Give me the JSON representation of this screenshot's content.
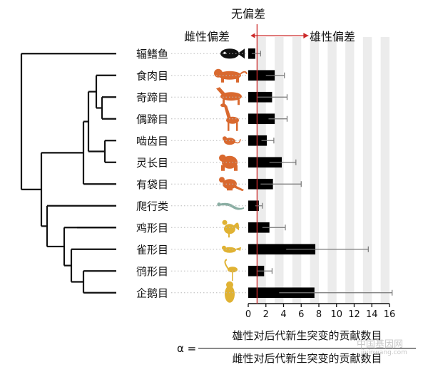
{
  "chart_data": {
    "type": "bar",
    "orientation": "horizontal",
    "title": "无偏差",
    "left_header": "雌性偏差",
    "right_header": "雄性偏差",
    "categories": [
      "辐鳍鱼",
      "食肉目",
      "奇蹄目",
      "偶蹄目",
      "啮齿目",
      "灵长目",
      "有袋目",
      "爬行类",
      "鸡形目",
      "雀形目",
      "鸻形目",
      "企鹅目"
    ],
    "values": [
      0.8,
      3.0,
      2.7,
      3.0,
      2.1,
      3.8,
      2.8,
      1.2,
      2.4,
      7.6,
      1.8,
      7.5
    ],
    "error_low": [
      0.4,
      2.0,
      1.0,
      2.3,
      1.5,
      2.4,
      1.4,
      0.8,
      1.6,
      4.3,
      1.0,
      3.5
    ],
    "error_high": [
      1.4,
      4.1,
      4.4,
      4.4,
      2.9,
      5.4,
      6.0,
      1.6,
      4.2,
      13.6,
      2.7,
      16.3
    ],
    "group_colors": [
      "#111111",
      "#d9692f",
      "#d9692f",
      "#d9692f",
      "#d9692f",
      "#d9692f",
      "#d9692f",
      "#8aaea3",
      "#e0b233",
      "#e0b233",
      "#e0b233",
      "#e0b233"
    ],
    "icons": [
      "fish-icon",
      "tiger-icon",
      "horse-icon",
      "giraffe-icon",
      "mouse-icon",
      "gorilla-icon",
      "kangaroo-icon",
      "lizard-icon",
      "rooster-icon",
      "bird-icon",
      "flamingo-icon",
      "penguin-icon"
    ],
    "xlim": [
      0,
      16
    ],
    "xticks": [
      "0",
      "2",
      "4",
      "6",
      "8",
      "10",
      "12",
      "14",
      "16"
    ],
    "xtick_values": [
      0,
      2,
      4,
      6,
      8,
      10,
      12,
      14,
      16
    ],
    "reference_line": 1,
    "grid": "alternating gray bands",
    "bar_color": "#000000",
    "reference_color": "#cc2a2a",
    "band_color": "#ececec"
  },
  "formula": {
    "alpha": "α =",
    "numerator": "雄性对后代新生突变的贡献数目",
    "denominator": "雌性对后代新生突变的贡献数目"
  },
  "watermark": {
    "line1": "中国基因网",
    "line2": "jiyinwang.com"
  }
}
